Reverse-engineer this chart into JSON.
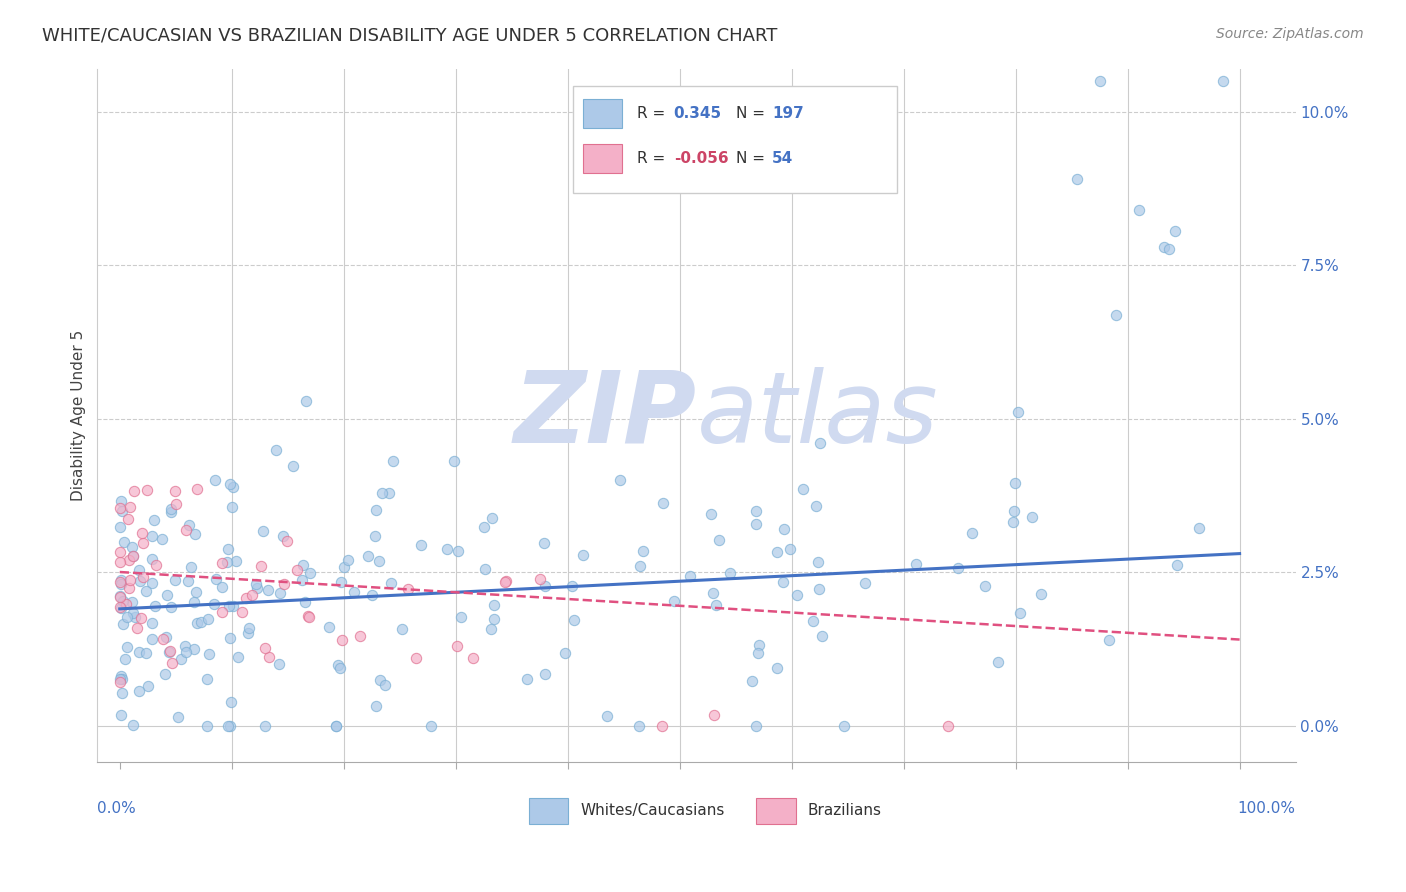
{
  "title": "WHITE/CAUCASIAN VS BRAZILIAN DISABILITY AGE UNDER 5 CORRELATION CHART",
  "source": "Source: ZipAtlas.com",
  "ylabel": "Disability Age Under 5",
  "watermark_zip": "ZIP",
  "watermark_atlas": "atlas",
  "legend_entries": [
    {
      "label": "Whites/Caucasians",
      "color": "#adc9e8",
      "edge": "#7bafd4",
      "R": "0.345",
      "N": "197"
    },
    {
      "label": "Brazilians",
      "color": "#f4b0c8",
      "edge": "#e07090",
      "R": "-0.056",
      "N": "54"
    }
  ],
  "blue_scatter": {
    "color": "#adc9e8",
    "edge_color": "#7bafd4",
    "alpha": 0.7,
    "size": 55,
    "linewidth": 0.8
  },
  "pink_scatter": {
    "color": "#f4b0c8",
    "edge_color": "#e07090",
    "alpha": 0.7,
    "size": 55,
    "linewidth": 0.8
  },
  "blue_line": {
    "color": "#4472c4",
    "y0": 0.019,
    "y1": 0.028,
    "linewidth": 2.2
  },
  "pink_line": {
    "color": "#e05080",
    "y0": 0.025,
    "y1": 0.014,
    "linewidth": 1.8,
    "linestyle": "--"
  },
  "yticks": [
    0.0,
    0.025,
    0.05,
    0.075,
    0.1
  ],
  "ytick_labels": [
    "0.0%",
    "2.5%",
    "5.0%",
    "7.5%",
    "10.0%"
  ],
  "ylim": [
    -0.006,
    0.107
  ],
  "xlim": [
    -0.02,
    1.05
  ],
  "bg_color": "#ffffff",
  "grid_color": "#cccccc",
  "title_fontsize": 13,
  "source_fontsize": 10,
  "ylabel_fontsize": 11,
  "tick_fontsize": 11,
  "watermark_fontsize": 72,
  "watermark_color": "#d0daf0",
  "seed": 12345
}
